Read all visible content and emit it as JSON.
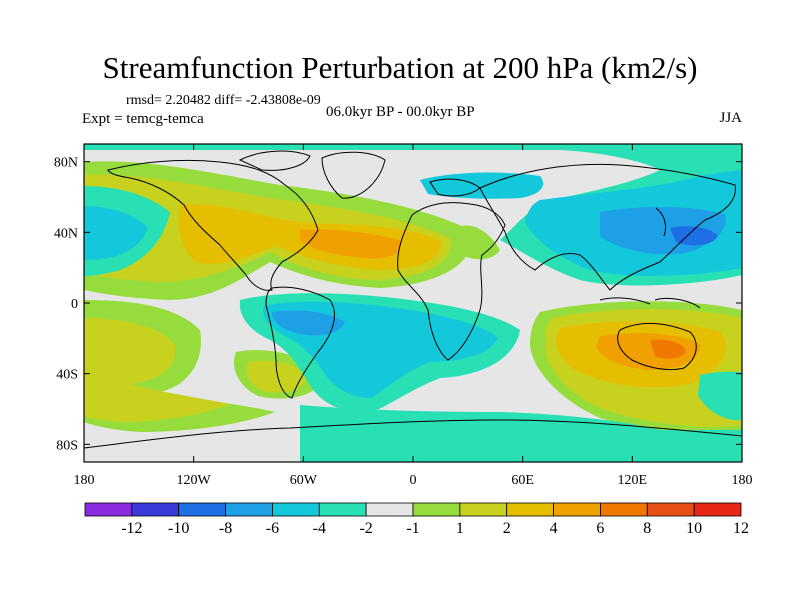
{
  "title": "Streamfunction Perturbation at 200 hPa (km2/s)",
  "stats_line": "rmsd= 2.20482 diff= -2.43808e-09",
  "experiment": "Expt = temcg-temca",
  "period": "06.0kyr BP - 00.0kyr BP",
  "season": "JJA",
  "axes": {
    "lon_ticks": [
      "180",
      "120W",
      "60W",
      "0",
      "60E",
      "120E",
      "180"
    ],
    "lat_ticks": [
      "80N",
      "40N",
      "0",
      "40S",
      "80S"
    ]
  },
  "colorbar": {
    "labels": [
      "-12",
      "-10",
      "-8",
      "-6",
      "-4",
      "-2",
      "-1",
      "1",
      "2",
      "4",
      "6",
      "8",
      "10",
      "12"
    ],
    "colors": [
      "#8a2be2",
      "#3a3ad8",
      "#1e6ee6",
      "#1ea0e6",
      "#14c8dc",
      "#28e0b4",
      "#e6e6e6",
      "#96dc3c",
      "#c8d21e",
      "#e6be00",
      "#f0a000",
      "#f07800",
      "#e65014",
      "#e62814"
    ]
  },
  "map": {
    "background_color": "#e6e6e6",
    "coast_color": "#000000"
  }
}
